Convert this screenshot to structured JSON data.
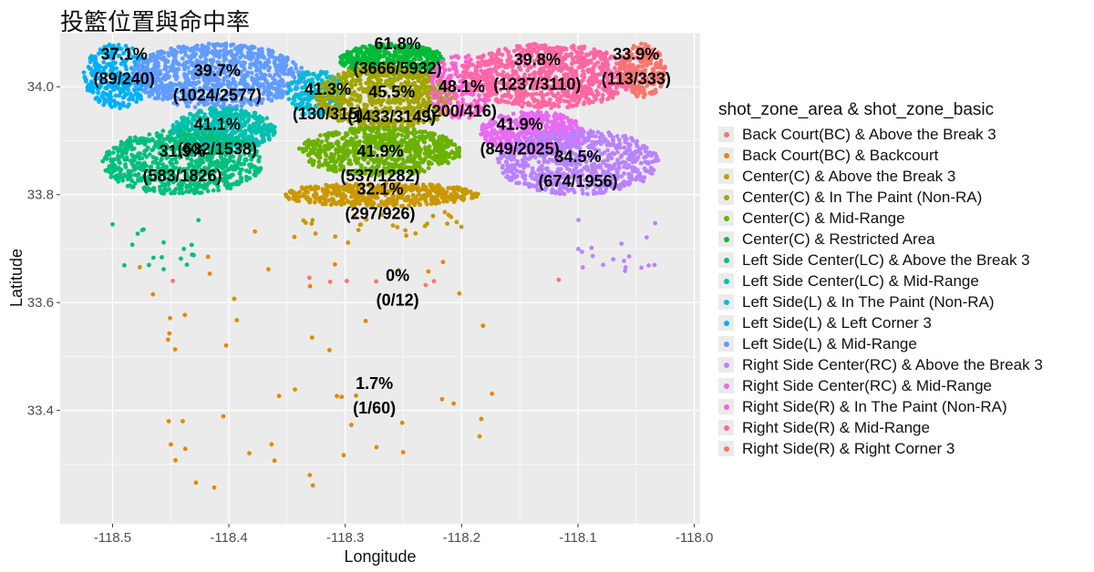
{
  "chart_data": {
    "type": "scatter",
    "title": "投籃位置與命中率",
    "xlabel": "Longitude",
    "ylabel": "Latitude",
    "xlim": [
      -118.545,
      -117.995
    ],
    "ylim": [
      33.19,
      34.1
    ],
    "xticks": [
      -118.5,
      -118.4,
      -118.3,
      -118.2,
      -118.1,
      -118.0
    ],
    "xtick_labels": [
      "-118.5",
      "-118.4",
      "-118.3",
      "-118.2",
      "-118.1",
      "-118.0"
    ],
    "yticks": [
      33.4,
      33.6,
      33.8,
      34.0
    ],
    "ytick_labels": [
      "33.4",
      "33.6",
      "33.8",
      "34.0"
    ],
    "grid": true,
    "legend_title": "shot_zone_area & shot_zone_basic",
    "legend_position": "right",
    "series": [
      {
        "name": "Back Court(BC) & Above the Break 3",
        "color": "#F8766D"
      },
      {
        "name": "Back Court(BC) & Backcourt",
        "color": "#E58700"
      },
      {
        "name": "Center(C) & Above the Break 3",
        "color": "#C99800"
      },
      {
        "name": "Center(C) & In The Paint (Non-RA)",
        "color": "#A3A500"
      },
      {
        "name": "Center(C) & Mid-Range",
        "color": "#6BB100"
      },
      {
        "name": "Center(C) & Restricted Area",
        "color": "#00BA38"
      },
      {
        "name": "Left Side Center(LC) & Above the Break 3",
        "color": "#00BF7D"
      },
      {
        "name": "Left Side Center(LC) & Mid-Range",
        "color": "#00C0AF"
      },
      {
        "name": "Left Side(L) & In The Paint (Non-RA)",
        "color": "#00BCD8"
      },
      {
        "name": "Left Side(L) & Left Corner 3",
        "color": "#00B0F6"
      },
      {
        "name": "Left Side(L) & Mid-Range",
        "color": "#619CFF"
      },
      {
        "name": "Right Side Center(RC) & Above the Break 3",
        "color": "#B983FF"
      },
      {
        "name": "Right Side Center(RC) & Mid-Range",
        "color": "#E76BF3"
      },
      {
        "name": "Right Side(R) & In The Paint (Non-RA)",
        "color": "#FD61D1"
      },
      {
        "name": "Right Side(R) & Mid-Range",
        "color": "#FF67A4"
      },
      {
        "name": "Right Side(R) & Right Corner 3",
        "color": "#F8766D"
      }
    ],
    "annotations": [
      {
        "x": -118.49,
        "y": 34.05,
        "pct": "37.1%",
        "frac": "(89/240)"
      },
      {
        "x": -118.41,
        "y": 34.02,
        "pct": "39.7%",
        "frac": "(1024/2577)"
      },
      {
        "x": -118.315,
        "y": 33.985,
        "pct": "41.3%",
        "frac": "(130/315)"
      },
      {
        "x": -118.255,
        "y": 34.07,
        "pct": "61.8%",
        "frac": "(3666/5932)"
      },
      {
        "x": -118.26,
        "y": 33.98,
        "pct": "45.5%",
        "frac": "(1433/3149)"
      },
      {
        "x": -118.2,
        "y": 33.99,
        "pct": "48.1%",
        "frac": "(200/416)"
      },
      {
        "x": -118.135,
        "y": 34.04,
        "pct": "39.8%",
        "frac": "(1237/3110)"
      },
      {
        "x": -118.05,
        "y": 34.05,
        "pct": "33.9%",
        "frac": "(113/333)"
      },
      {
        "x": -118.41,
        "y": 33.92,
        "pct": "41.1%",
        "frac": "(632/1538)"
      },
      {
        "x": -118.15,
        "y": 33.92,
        "pct": "41.9%",
        "frac": "(849/2025)"
      },
      {
        "x": -118.44,
        "y": 33.87,
        "pct": "31.9%",
        "frac": "(583/1826)"
      },
      {
        "x": -118.27,
        "y": 33.87,
        "pct": "41.9%",
        "frac": "(537/1282)"
      },
      {
        "x": -118.1,
        "y": 33.86,
        "pct": "34.5%",
        "frac": "(674/1956)"
      },
      {
        "x": -118.27,
        "y": 33.8,
        "pct": "32.1%",
        "frac": "(297/926)"
      },
      {
        "x": -118.255,
        "y": 33.64,
        "pct": "0%",
        "frac": "(0/12)"
      },
      {
        "x": -118.275,
        "y": 33.44,
        "pct": "1.7%",
        "frac": "(1/60)"
      }
    ]
  }
}
